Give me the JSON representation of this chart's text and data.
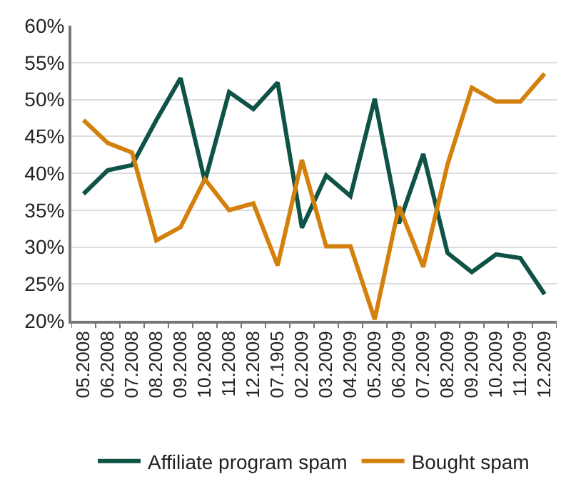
{
  "chart_data": {
    "type": "line",
    "categories": [
      "05.2008",
      "06.2008",
      "07.2008",
      "08.2008",
      "09.2008",
      "10.2008",
      "11.2008",
      "12.2008",
      "07.1905",
      "02.2009",
      "03.2009",
      "04.2009",
      "05.2009",
      "06.2009",
      "07.2009",
      "08.2009",
      "09.2009",
      "10.2009",
      "11.2009",
      "12.2009"
    ],
    "series": [
      {
        "name": "Affiliate program spam",
        "color": "#0e5346",
        "values": [
          37.2,
          40.4,
          41.1,
          47.2,
          52.9,
          38.9,
          51.0,
          48.7,
          52.3,
          32.6,
          39.7,
          36.9,
          50.1,
          33.2,
          42.6,
          29.2,
          26.6,
          29.0,
          28.5,
          23.6
        ]
      },
      {
        "name": "Bought spam",
        "color": "#d4800c",
        "values": [
          47.2,
          44.1,
          42.8,
          30.9,
          32.7,
          39.2,
          35.0,
          35.9,
          27.5,
          41.8,
          30.1,
          30.1,
          20.2,
          35.5,
          27.3,
          41.2,
          51.6,
          49.7,
          49.7,
          53.5
        ]
      }
    ],
    "ylim": [
      20,
      60
    ],
    "yticks": [
      {
        "value": 20,
        "label": "20%"
      },
      {
        "value": 25,
        "label": "25%"
      },
      {
        "value": 30,
        "label": "30%"
      },
      {
        "value": 35,
        "label": "35%"
      },
      {
        "value": 40,
        "label": "40%"
      },
      {
        "value": 45,
        "label": "45%"
      },
      {
        "value": 50,
        "label": "50%"
      },
      {
        "value": 55,
        "label": "55%"
      },
      {
        "value": 60,
        "label": "60%"
      }
    ],
    "grid": "y",
    "legend": "bottom",
    "marker": "none",
    "line_style": "solid"
  }
}
